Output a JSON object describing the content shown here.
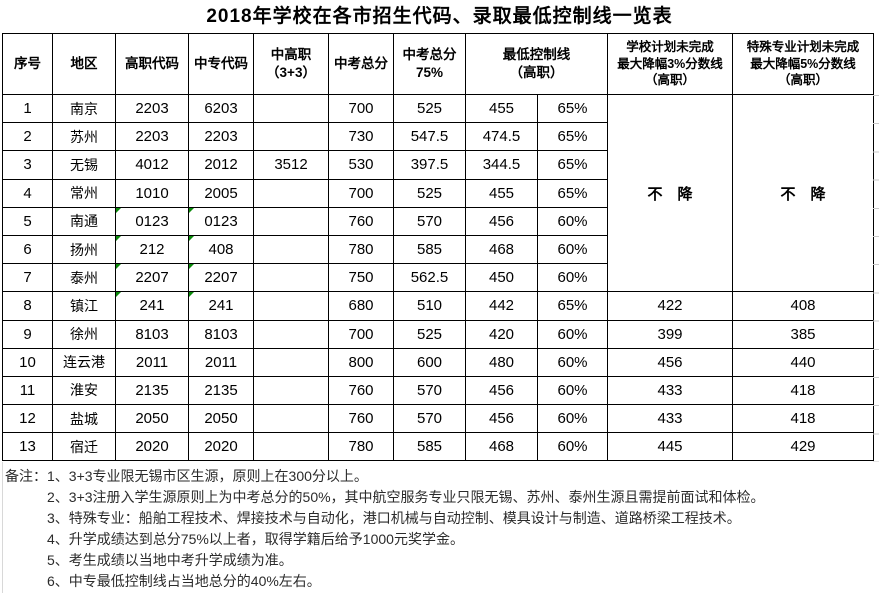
{
  "title": "2018年学校在各市招生代码、录取最低控制线一览表",
  "colors": {
    "grid_line": "#000000",
    "green_marker": "#0a8a0a",
    "note_text": "#2b2b2b"
  },
  "table": {
    "headers": {
      "seq": "序号",
      "region": "地区",
      "gz_code": "高职代码",
      "zz_code": "中专代码",
      "zgz": "中高职\n（3+3）",
      "total": "中考总分",
      "total75": "中考总分\n75%",
      "ctrl": "最低控制线\n（高职）",
      "school_plan": "学校计划未完成\n最大降幅3%分数线\n（高职）",
      "special_plan": "特殊专业计划未完成\n最大降幅5%分数线\n（高职）"
    },
    "no_drop_label": "不　降",
    "rows": [
      {
        "seq": "1",
        "region": "南京",
        "gz": "2203",
        "zz": "6203",
        "zgz": "",
        "total": "700",
        "t75": "525",
        "ctrl": "455",
        "pct": "65%",
        "green": false
      },
      {
        "seq": "2",
        "region": "苏州",
        "gz": "2203",
        "zz": "2203",
        "zgz": "",
        "total": "730",
        "t75": "547.5",
        "ctrl": "474.5",
        "pct": "65%",
        "green": false
      },
      {
        "seq": "3",
        "region": "无锡",
        "gz": "4012",
        "zz": "2012",
        "zgz": "3512",
        "total": "530",
        "t75": "397.5",
        "ctrl": "344.5",
        "pct": "65%",
        "green": false
      },
      {
        "seq": "4",
        "region": "常州",
        "gz": "1010",
        "zz": "2005",
        "zgz": "",
        "total": "700",
        "t75": "525",
        "ctrl": "455",
        "pct": "65%",
        "green": false
      },
      {
        "seq": "5",
        "region": "南通",
        "gz": "0123",
        "zz": "0123",
        "zgz": "",
        "total": "760",
        "t75": "570",
        "ctrl": "456",
        "pct": "60%",
        "green": true
      },
      {
        "seq": "6",
        "region": "扬州",
        "gz": "212",
        "zz": "408",
        "zgz": "",
        "total": "780",
        "t75": "585",
        "ctrl": "468",
        "pct": "60%",
        "green": true
      },
      {
        "seq": "7",
        "region": "泰州",
        "gz": "2207",
        "zz": "2207",
        "zgz": "",
        "total": "750",
        "t75": "562.5",
        "ctrl": "450",
        "pct": "60%",
        "green": true
      },
      {
        "seq": "8",
        "region": "镇江",
        "gz": "241",
        "zz": "241",
        "zgz": "",
        "total": "680",
        "t75": "510",
        "ctrl": "442",
        "pct": "65%",
        "green": true,
        "school": "422",
        "special": "408"
      },
      {
        "seq": "9",
        "region": "徐州",
        "gz": "8103",
        "zz": "8103",
        "zgz": "",
        "total": "700",
        "t75": "525",
        "ctrl": "420",
        "pct": "60%",
        "green": false,
        "school": "399",
        "special": "385"
      },
      {
        "seq": "10",
        "region": "连云港",
        "gz": "2011",
        "zz": "2011",
        "zgz": "",
        "total": "800",
        "t75": "600",
        "ctrl": "480",
        "pct": "60%",
        "green": false,
        "school": "456",
        "special": "440"
      },
      {
        "seq": "11",
        "region": "淮安",
        "gz": "2135",
        "zz": "2135",
        "zgz": "",
        "total": "760",
        "t75": "570",
        "ctrl": "456",
        "pct": "60%",
        "green": false,
        "school": "433",
        "special": "418"
      },
      {
        "seq": "12",
        "region": "盐城",
        "gz": "2050",
        "zz": "2050",
        "zgz": "",
        "total": "760",
        "t75": "570",
        "ctrl": "456",
        "pct": "60%",
        "green": false,
        "school": "433",
        "special": "418"
      },
      {
        "seq": "13",
        "region": "宿迁",
        "gz": "2020",
        "zz": "2020",
        "zgz": "",
        "total": "780",
        "t75": "585",
        "ctrl": "468",
        "pct": "60%",
        "green": false,
        "school": "445",
        "special": "429"
      }
    ]
  },
  "notes": {
    "label": "备注：",
    "items": [
      "1、3+3专业限无锡市区生源，原则上在300分以上。",
      "2、3+3注册入学生源原则上为中考总分的50%，其中航空服务专业只限无锡、苏州、泰州生源且需提前面试和体检。",
      "3、特殊专业：船舶工程技术、焊接技术与自动化，港口机械与自动控制、模具设计与制造、道路桥梁工程技术。",
      "4、升学成绩达到总分75%以上者，取得学籍后给予1000元奖学金。",
      "5、考生成绩以当地中考升学成绩为准。",
      "6、中专最低控制线占当地总分的40%左右。"
    ]
  }
}
